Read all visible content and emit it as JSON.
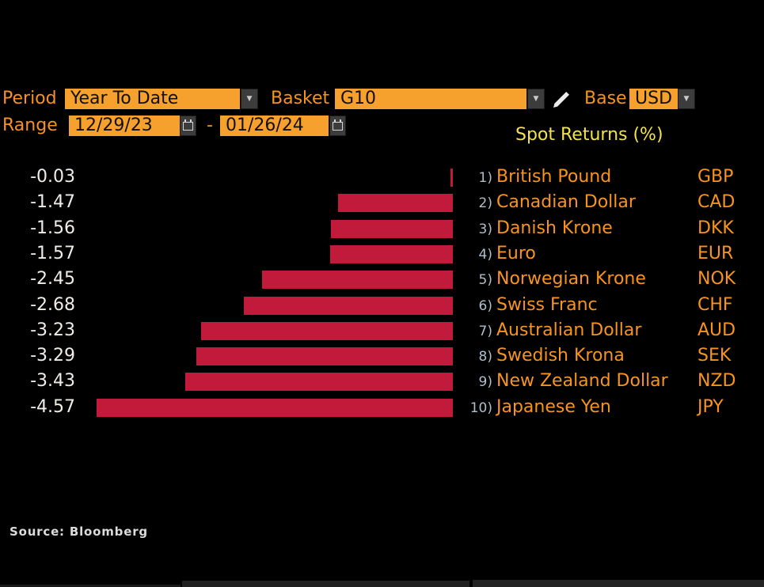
{
  "controls": {
    "period_label": "Period",
    "period_value": "Year To Date",
    "basket_label": "Basket",
    "basket_value": "G10",
    "base_label": "Base",
    "base_value": "USD",
    "range_label": "Range",
    "range_start": "12/29/23",
    "range_separator": "-",
    "range_end": "01/26/24"
  },
  "icons": {
    "dropdown_arrow": "▼"
  },
  "chart_data": {
    "type": "bar",
    "orientation": "horizontal",
    "title": "Spot Returns (%)",
    "xlim": [
      -5,
      0
    ],
    "grid": false,
    "legend": false,
    "bar_color": "#C11A3A",
    "rows": [
      {
        "rank": "1)",
        "name": "British Pound",
        "code": "GBP",
        "value": -0.03,
        "value_label": "-0.03"
      },
      {
        "rank": "2)",
        "name": "Canadian Dollar",
        "code": "CAD",
        "value": -1.47,
        "value_label": "-1.47"
      },
      {
        "rank": "3)",
        "name": "Danish Krone",
        "code": "DKK",
        "value": -1.56,
        "value_label": "-1.56"
      },
      {
        "rank": "4)",
        "name": "Euro",
        "code": "EUR",
        "value": -1.57,
        "value_label": "-1.57"
      },
      {
        "rank": "5)",
        "name": "Norwegian Krone",
        "code": "NOK",
        "value": -2.45,
        "value_label": "-2.45"
      },
      {
        "rank": "6)",
        "name": "Swiss Franc",
        "code": "CHF",
        "value": -2.68,
        "value_label": "-2.68"
      },
      {
        "rank": "7)",
        "name": "Australian Dollar",
        "code": "AUD",
        "value": -3.23,
        "value_label": "-3.23"
      },
      {
        "rank": "8)",
        "name": "Swedish Krona",
        "code": "SEK",
        "value": -3.29,
        "value_label": "-3.29"
      },
      {
        "rank": "9)",
        "name": "New Zealand Dollar",
        "code": "NZD",
        "value": -3.43,
        "value_label": "-3.43"
      },
      {
        "rank": "10)",
        "name": "Japanese Yen",
        "code": "JPY",
        "value": -4.57,
        "value_label": "-4.57"
      }
    ]
  },
  "source": "Source: Bloomberg",
  "colors": {
    "background": "#000000",
    "accent_orange_text": "#F7921E",
    "field_orange": "#F6A12E",
    "bar_red": "#C11A3A",
    "title_yellow": "#F2E34A",
    "value_white": "#F0EDE8",
    "rank_gray_blue": "#AEBECB",
    "button_gray": "#3C3C3C"
  }
}
